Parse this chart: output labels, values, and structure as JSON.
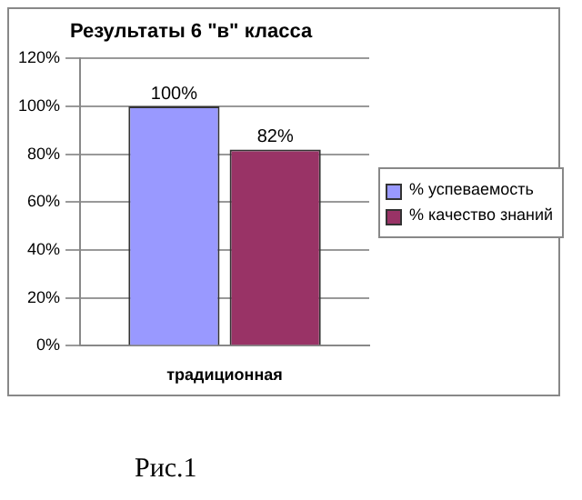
{
  "chart_data": {
    "type": "bar",
    "title": "Результаты 6 \"в\" класса",
    "categories": [
      "традиционная"
    ],
    "series": [
      {
        "name": "% успеваемость",
        "color": "#9999ff",
        "values": [
          100
        ],
        "value_labels": [
          "100%"
        ]
      },
      {
        "name": "% качество знаний",
        "color": "#993366",
        "values": [
          82
        ],
        "value_labels": [
          "82%"
        ]
      }
    ],
    "ylim": [
      0,
      120
    ],
    "yticks": [
      {
        "value": 0,
        "label": "0%"
      },
      {
        "value": 20,
        "label": "20%"
      },
      {
        "value": 40,
        "label": "40%"
      },
      {
        "value": 60,
        "label": "60%"
      },
      {
        "value": 80,
        "label": "80%"
      },
      {
        "value": 100,
        "label": "100%"
      },
      {
        "value": 120,
        "label": "120%"
      }
    ],
    "grid": "y",
    "legend": "right",
    "annotations": [
      "Рис.1"
    ]
  }
}
